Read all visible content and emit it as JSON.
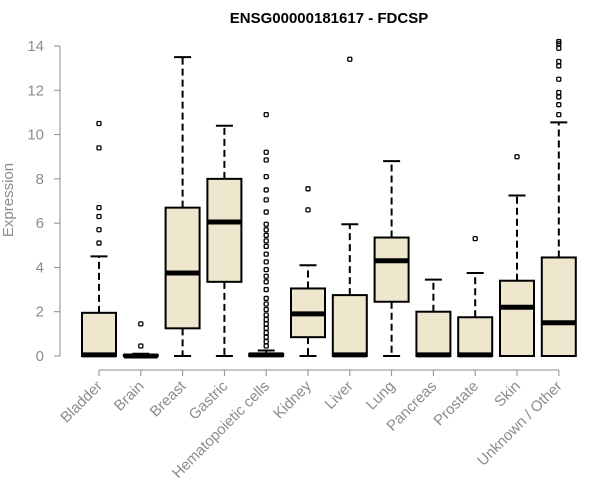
{
  "chart_data": {
    "type": "box",
    "title": "ENSG00000181617 - FDCSP",
    "ylabel": "Expression",
    "xlabel": "",
    "ylim": [
      0,
      14
    ],
    "yticks": [
      0,
      2,
      4,
      6,
      8,
      10,
      12,
      14
    ],
    "grid": false,
    "legend": "none",
    "colors": {
      "box_fill": "#EEE7CD",
      "stroke": "#000000",
      "axis": "#8C8C8C"
    },
    "categories": [
      "Bladder",
      "Brain",
      "Breast",
      "Gastric",
      "Hematopoietic cells",
      "Kidney",
      "Liver",
      "Lung",
      "Pancreas",
      "Prostate",
      "Skin",
      "Unknown / Other"
    ],
    "boxes": [
      {
        "category": "Bladder",
        "whisker_low": 0,
        "q1": 0,
        "median": 0.05,
        "q3": 1.95,
        "whisker_high": 4.5,
        "outliers": [
          5.1,
          5.7,
          6.3,
          6.7,
          9.4,
          10.5
        ]
      },
      {
        "category": "Brain",
        "whisker_low": 0,
        "q1": 0,
        "median": 0,
        "q3": 0.05,
        "whisker_high": 0.1,
        "outliers": [
          0.45,
          1.45
        ]
      },
      {
        "category": "Breast",
        "whisker_low": 0,
        "q1": 1.25,
        "median": 3.75,
        "q3": 6.7,
        "whisker_high": 13.5,
        "outliers": []
      },
      {
        "category": "Gastric",
        "whisker_low": 0,
        "q1": 3.35,
        "median": 6.05,
        "q3": 8.0,
        "whisker_high": 10.4,
        "outliers": []
      },
      {
        "category": "Hematopoietic cells",
        "whisker_low": 0,
        "q1": 0,
        "median": 0.05,
        "q3": 0.1,
        "whisker_high": 0.25,
        "outliers": [
          0.45,
          0.65,
          0.85,
          1.05,
          1.25,
          1.45,
          1.65,
          1.85,
          2.1,
          2.35,
          2.6,
          3.0,
          3.35,
          3.6,
          3.9,
          4.25,
          4.6,
          4.95,
          5.2,
          5.45,
          5.7,
          5.95,
          6.5,
          7.05,
          7.5,
          8.1,
          8.85,
          9.2,
          10.9
        ]
      },
      {
        "category": "Kidney",
        "whisker_low": 0,
        "q1": 0.85,
        "median": 1.9,
        "q3": 3.05,
        "whisker_high": 4.1,
        "outliers": [
          6.6,
          7.55
        ]
      },
      {
        "category": "Liver",
        "whisker_low": 0,
        "q1": 0,
        "median": 0.05,
        "q3": 2.75,
        "whisker_high": 5.95,
        "outliers": [
          13.4
        ]
      },
      {
        "category": "Lung",
        "whisker_low": 0,
        "q1": 2.45,
        "median": 4.3,
        "q3": 5.35,
        "whisker_high": 8.8,
        "outliers": []
      },
      {
        "category": "Pancreas",
        "whisker_low": 0,
        "q1": 0,
        "median": 0.05,
        "q3": 2.0,
        "whisker_high": 3.45,
        "outliers": []
      },
      {
        "category": "Prostate",
        "whisker_low": 0,
        "q1": 0,
        "median": 0.05,
        "q3": 1.75,
        "whisker_high": 3.75,
        "outliers": [
          5.3
        ]
      },
      {
        "category": "Skin",
        "whisker_low": 0,
        "q1": 0,
        "median": 2.2,
        "q3": 3.4,
        "whisker_high": 7.25,
        "outliers": [
          9.0
        ]
      },
      {
        "category": "Unknown / Other",
        "whisker_low": 0,
        "q1": 0,
        "median": 1.5,
        "q3": 4.45,
        "whisker_high": 10.55,
        "outliers": [
          10.9,
          11.35,
          11.7,
          11.9,
          12.5,
          13.1,
          13.3,
          13.9,
          14.1,
          14.2
        ]
      }
    ]
  }
}
